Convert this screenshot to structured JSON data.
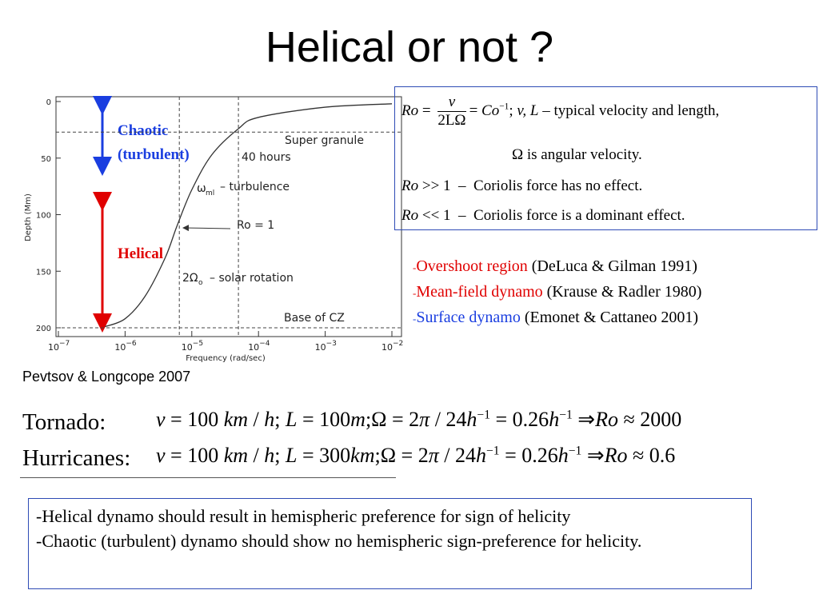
{
  "title": "Helical or not ?",
  "figure": {
    "type": "line",
    "x_label": "Frequency (rad/sec)",
    "y_label": "Depth (Mm)",
    "log_x": true,
    "y_inverted": true,
    "xlim": [
      1e-07,
      0.01
    ],
    "ylim": [
      0,
      200
    ],
    "xticks": [
      {
        "value": 1e-07,
        "label": "10",
        "exponent": "−7"
      },
      {
        "value": 1e-06,
        "label": "10",
        "exponent": "−6"
      },
      {
        "value": 1e-05,
        "label": "10",
        "exponent": "−5"
      },
      {
        "value": 0.0001,
        "label": "10",
        "exponent": "−4"
      },
      {
        "value": 0.001,
        "label": "10",
        "exponent": "−3"
      },
      {
        "value": 0.01,
        "label": "10",
        "exponent": "−2"
      }
    ],
    "yticks": [
      0,
      50,
      100,
      150,
      200
    ],
    "x": [
      5e-07,
      1e-06,
      2e-06,
      4e-06,
      6e-06,
      1e-05,
      2e-05,
      5e-05,
      0.0001,
      0.001,
      0.01
    ],
    "values": [
      199,
      192,
      172,
      138,
      110,
      78,
      47,
      24,
      14,
      5,
      2
    ],
    "color": "#333333",
    "hlines": [
      27,
      200
    ],
    "vlines": [
      6.5e-06,
      5e-05
    ],
    "annotations": {
      "super": "Super granule",
      "hours": "40 hours",
      "omega": "ω",
      "omega_sub": "ml",
      "turb": "– turbulence",
      "ro": "Ro = 1",
      "two": "2Ω",
      "two_sub": "o",
      "solar": "– solar rotation",
      "base": "Base of CZ"
    },
    "chaotic": [
      "Chaotic",
      "(turbulent)"
    ],
    "helical": "Helical"
  },
  "equations": {
    "l1": {
      "ro": "Ro",
      "eq": "=",
      "num": "v",
      "den": "2LΩ",
      "eq2": "= ",
      "co": "Co",
      "sup": "−1",
      "sep": "; ",
      "vl": "v, L",
      "tail": " – typical velocity and length,"
    },
    "l2": "Ω is angular  velocity.",
    "l3": {
      "ro": "Ro",
      "rel": " >> 1  –  Coriolis force has no effect."
    },
    "l4": {
      "ro": "Ro",
      "rel": " << 1  –  Coriolis force is a dominant effect."
    }
  },
  "references": [
    {
      "dash": "-",
      "topic": "Overshoot region",
      "cite": " (DeLuca & Gilman 1991)",
      "color": "#e00000"
    },
    {
      "dash": "-",
      "topic": "Mean-field dynamo",
      "cite": " (Krause & Radler 1980)",
      "color": "#e00000"
    },
    {
      "dash": "-",
      "topic": "Surface dynamo",
      "cite": " (Emonet & Cattaneo 2001)",
      "color": "#1a3ee0"
    }
  ],
  "caption": "Pevtsov & Longcope 2007",
  "cases": [
    {
      "label": "Tornado:",
      "segments": [
        {
          "text": "v",
          "style": "i"
        },
        {
          "text": " = 100 ",
          "style": "n"
        },
        {
          "text": "km",
          "style": "i"
        },
        {
          "text": " / ",
          "style": "n"
        },
        {
          "text": "h",
          "style": "i"
        },
        {
          "text": "; ",
          "style": "n"
        },
        {
          "text": "L",
          "style": "i"
        },
        {
          "text": " = 100",
          "style": "n"
        },
        {
          "text": "m",
          "style": "i"
        },
        {
          "text": ";Ω = 2",
          "style": "n"
        },
        {
          "text": "π",
          "style": "i"
        },
        {
          "text": " / 24",
          "style": "n"
        },
        {
          "text": "h",
          "style": "i"
        },
        {
          "text": "−1",
          "style": "sup"
        },
        {
          "text": " = 0.26",
          "style": "n"
        },
        {
          "text": "h",
          "style": "i"
        },
        {
          "text": "−1",
          "style": "sup"
        },
        {
          "text": " ⇒",
          "style": "n"
        },
        {
          "text": "Ro",
          "style": "i"
        },
        {
          "text": " ≈ 2000",
          "style": "n"
        }
      ]
    },
    {
      "label": "Hurricanes:",
      "segments": [
        {
          "text": "v",
          "style": "i"
        },
        {
          "text": " = 100 ",
          "style": "n"
        },
        {
          "text": "km",
          "style": "i"
        },
        {
          "text": " / ",
          "style": "n"
        },
        {
          "text": "h",
          "style": "i"
        },
        {
          "text": "; ",
          "style": "n"
        },
        {
          "text": "L",
          "style": "i"
        },
        {
          "text": " = 300",
          "style": "n"
        },
        {
          "text": "km",
          "style": "i"
        },
        {
          "text": ";Ω = 2",
          "style": "n"
        },
        {
          "text": "π",
          "style": "i"
        },
        {
          "text": " / 24",
          "style": "n"
        },
        {
          "text": "h",
          "style": "i"
        },
        {
          "text": "−1",
          "style": "sup"
        },
        {
          "text": " = 0.26",
          "style": "n"
        },
        {
          "text": "h",
          "style": "i"
        },
        {
          "text": "−1",
          "style": "sup"
        },
        {
          "text": " ⇒",
          "style": "n"
        },
        {
          "text": "Ro",
          "style": "i"
        },
        {
          "text": " ≈ 0.6",
          "style": "n"
        }
      ]
    }
  ],
  "conclusions": [
    "-Helical dynamo should result in hemispheric preference for sign of helicity",
    "-Chaotic (turbulent) dynamo should show no hemispheric sign-preference for helicity."
  ]
}
